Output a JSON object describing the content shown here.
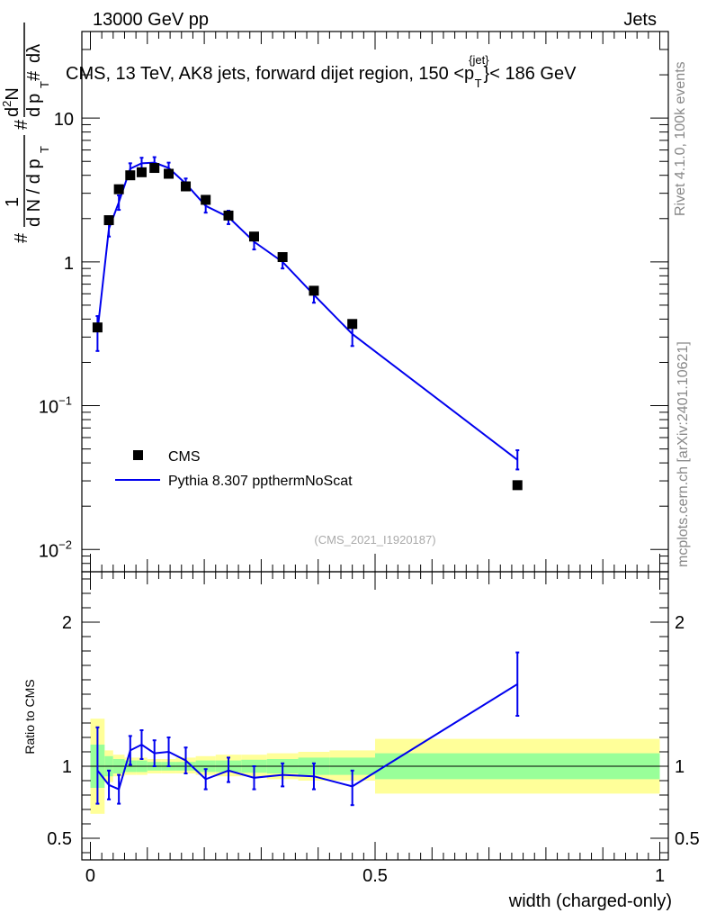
{
  "header": {
    "left": "13000 GeV pp",
    "right": "Jets"
  },
  "title": {
    "main": "CMS, 13 TeV, AK8 jets, forward dijet region, 150 <p",
    "sup": "{jet}",
    "sub": "T",
    "tail": "}< 186 GeV"
  },
  "side_text": {
    "rivet": "Rivet 4.1.0,  100k events",
    "mcplots": "mcplots.cern.ch [arXiv:2401.10621]"
  },
  "analysis_id": "(CMS_2021_I1920187)",
  "colors": {
    "data": "#000000",
    "mc": "#0000ee",
    "band_inner": "#99ff99",
    "band_outer": "#ffff99"
  },
  "chart_data": [
    {
      "type": "scatter",
      "panel": "main",
      "yscale": "log",
      "xlim": [
        -0.015,
        1.015
      ],
      "ylim": [
        0.007,
        40
      ],
      "ylabel": "1/dN/dpT # d²N/dpT dλ",
      "ylabel_parts": {
        "sup": "2",
        "n": "N",
        "d": "d",
        "pt": "p",
        "t": "T",
        "lam": "dλ",
        "hash": "#",
        "frac": "1",
        "dn": "d N / d p"
      },
      "y_tick_labels": [
        {
          "value": 0.01,
          "base": "10",
          "exp": "−2"
        },
        {
          "value": 0.1,
          "base": "10",
          "exp": "−1"
        },
        {
          "value": 1,
          "label": "1"
        },
        {
          "value": 10,
          "label": "10"
        }
      ],
      "legend": {
        "data": "CMS",
        "mc": "Pythia 8.307 ppthermNoScat",
        "position": "middle-left"
      },
      "series": [
        {
          "name": "CMS",
          "x": [
            0.0125,
            0.0325,
            0.05,
            0.07,
            0.09,
            0.1125,
            0.1375,
            0.1675,
            0.2025,
            0.2425,
            0.2875,
            0.3375,
            0.3925,
            0.46,
            0.75
          ],
          "values": [
            0.35,
            1.95,
            3.2,
            4.0,
            4.2,
            4.5,
            4.1,
            3.35,
            2.7,
            2.1,
            1.5,
            1.08,
            0.63,
            0.37,
            0.028
          ]
        },
        {
          "name": "Pythia 8.307 ppthermNoScat",
          "x": [
            0.0125,
            0.0325,
            0.05,
            0.07,
            0.09,
            0.1125,
            0.1375,
            0.1675,
            0.2025,
            0.2425,
            0.2875,
            0.3375,
            0.3925,
            0.46,
            0.75
          ],
          "values": [
            0.33,
            1.7,
            2.6,
            4.45,
            4.85,
            4.9,
            4.5,
            3.5,
            2.45,
            2.05,
            1.38,
            1.0,
            0.59,
            0.315,
            0.042
          ],
          "err_low": [
            0.24,
            1.5,
            2.3,
            4.05,
            4.4,
            4.45,
            4.1,
            3.2,
            2.2,
            1.83,
            1.22,
            0.9,
            0.52,
            0.26,
            0.036
          ],
          "err_high": [
            0.42,
            1.9,
            2.9,
            4.85,
            5.3,
            5.35,
            4.9,
            3.8,
            2.7,
            2.27,
            1.54,
            1.1,
            0.66,
            0.37,
            0.049
          ]
        }
      ]
    },
    {
      "type": "line",
      "panel": "ratio",
      "xlim": [
        -0.015,
        1.015
      ],
      "ylim": [
        0.35,
        2.35
      ],
      "xlabel": "width (charged-only)",
      "ylabel": "Ratio to CMS",
      "x_tick_labels": [
        {
          "value": 0,
          "label": "0"
        },
        {
          "value": 0.5,
          "label": "0.5"
        },
        {
          "value": 1,
          "label": "1"
        }
      ],
      "y_tick_labels": [
        {
          "value": 0.5,
          "label": "0.5"
        },
        {
          "value": 1,
          "label": "1"
        },
        {
          "value": 2,
          "label": "2"
        }
      ],
      "band_bins": [
        {
          "x0": 0.0,
          "x1": 0.025,
          "in_lo": 0.85,
          "in_hi": 1.15,
          "out_lo": 0.67,
          "out_hi": 1.33
        },
        {
          "x0": 0.025,
          "x1": 0.04,
          "in_lo": 0.93,
          "in_hi": 1.07,
          "out_lo": 0.89,
          "out_hi": 1.11
        },
        {
          "x0": 0.04,
          "x1": 0.06,
          "in_lo": 0.95,
          "in_hi": 1.05,
          "out_lo": 0.93,
          "out_hi": 1.08
        },
        {
          "x0": 0.06,
          "x1": 0.08,
          "in_lo": 0.96,
          "in_hi": 1.04,
          "out_lo": 0.94,
          "out_hi": 1.06
        },
        {
          "x0": 0.08,
          "x1": 0.1,
          "in_lo": 0.96,
          "in_hi": 1.04,
          "out_lo": 0.94,
          "out_hi": 1.06
        },
        {
          "x0": 0.1,
          "x1": 0.125,
          "in_lo": 0.97,
          "in_hi": 1.03,
          "out_lo": 0.95,
          "out_hi": 1.05
        },
        {
          "x0": 0.125,
          "x1": 0.15,
          "in_lo": 0.97,
          "in_hi": 1.03,
          "out_lo": 0.95,
          "out_hi": 1.05
        },
        {
          "x0": 0.15,
          "x1": 0.185,
          "in_lo": 0.97,
          "in_hi": 1.03,
          "out_lo": 0.95,
          "out_hi": 1.06
        },
        {
          "x0": 0.185,
          "x1": 0.22,
          "in_lo": 0.96,
          "in_hi": 1.04,
          "out_lo": 0.94,
          "out_hi": 1.07
        },
        {
          "x0": 0.22,
          "x1": 0.265,
          "in_lo": 0.96,
          "in_hi": 1.04,
          "out_lo": 0.93,
          "out_hi": 1.08
        },
        {
          "x0": 0.265,
          "x1": 0.31,
          "in_lo": 0.955,
          "in_hi": 1.045,
          "out_lo": 0.93,
          "out_hi": 1.08
        },
        {
          "x0": 0.31,
          "x1": 0.365,
          "in_lo": 0.95,
          "in_hi": 1.05,
          "out_lo": 0.91,
          "out_hi": 1.09
        },
        {
          "x0": 0.365,
          "x1": 0.42,
          "in_lo": 0.94,
          "in_hi": 1.06,
          "out_lo": 0.9,
          "out_hi": 1.1
        },
        {
          "x0": 0.42,
          "x1": 0.5,
          "in_lo": 0.94,
          "in_hi": 1.06,
          "out_lo": 0.9,
          "out_hi": 1.11
        },
        {
          "x0": 0.5,
          "x1": 1.0,
          "in_lo": 0.91,
          "in_hi": 1.09,
          "out_lo": 0.81,
          "out_hi": 1.19
        }
      ],
      "series": [
        {
          "name": "Pythia / CMS",
          "x": [
            0.0125,
            0.0325,
            0.05,
            0.07,
            0.09,
            0.1125,
            0.1375,
            0.1675,
            0.2025,
            0.2425,
            0.2875,
            0.3375,
            0.3925,
            0.46,
            0.75
          ],
          "values": [
            0.97,
            0.87,
            0.84,
            1.11,
            1.15,
            1.09,
            1.1,
            1.04,
            0.91,
            0.97,
            0.92,
            0.94,
            0.93,
            0.86,
            1.57
          ],
          "err_low": [
            0.74,
            0.77,
            0.74,
            1.01,
            1.05,
            1.0,
            1.0,
            0.95,
            0.84,
            0.89,
            0.84,
            0.86,
            0.84,
            0.73,
            1.35
          ],
          "err_high": [
            1.27,
            0.97,
            0.94,
            1.21,
            1.25,
            1.18,
            1.2,
            1.13,
            0.98,
            1.06,
            1.0,
            1.02,
            1.02,
            0.97,
            1.79
          ]
        }
      ]
    }
  ]
}
